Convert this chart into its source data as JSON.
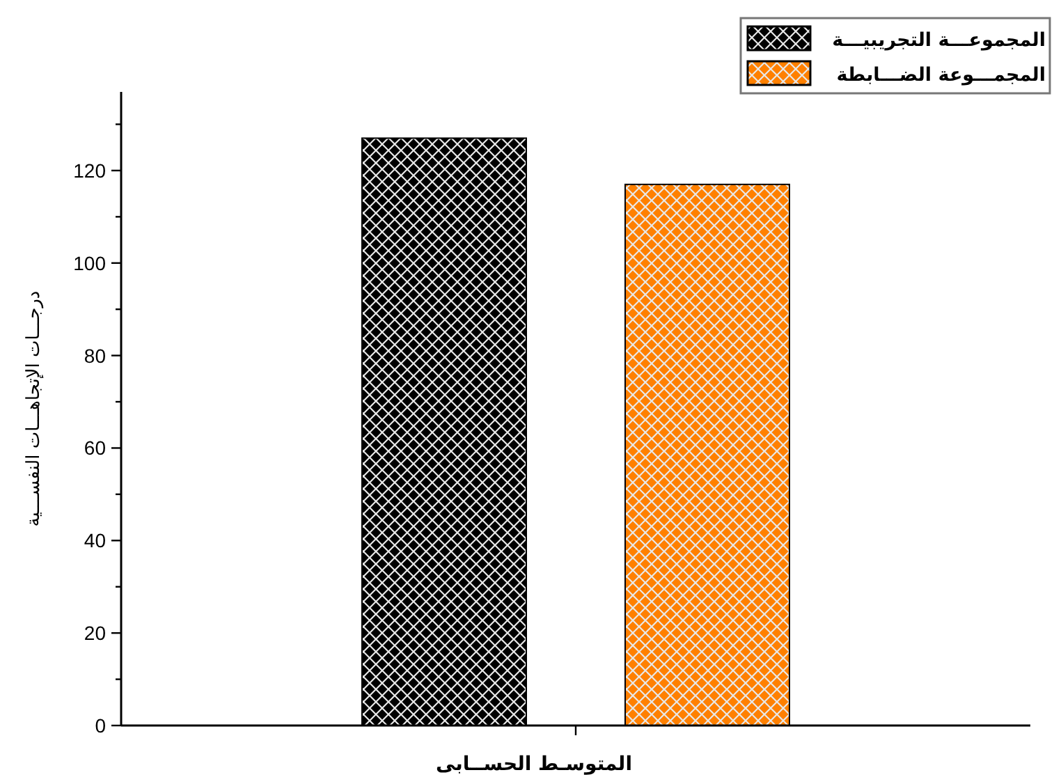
{
  "chart_data": {
    "type": "bar",
    "xlabel": "المتوسـط الحســابى",
    "ylabel": "درجـــات الإتجاهـــات النفســـية",
    "categories": [
      null
    ],
    "series": [
      {
        "name": "المجموعـــة التجريبيـــة",
        "color": "#000000",
        "values": [
          127
        ]
      },
      {
        "name": "المجمـــوعة الضـــابطة",
        "color": "#ff8000",
        "values": [
          117
        ]
      }
    ],
    "ylim": [
      0,
      137
    ],
    "yticks": [
      0,
      {
        "value": 10,
        "label": null
      },
      20,
      {
        "value": 30,
        "label": null
      },
      40,
      {
        "value": 50,
        "label": null
      },
      60,
      {
        "value": 70,
        "label": null
      },
      80,
      {
        "value": 90,
        "label": null
      },
      100,
      {
        "value": 110,
        "label": null
      },
      120,
      {
        "value": 130,
        "label": null
      }
    ],
    "grid": false,
    "legend": "top right"
  }
}
